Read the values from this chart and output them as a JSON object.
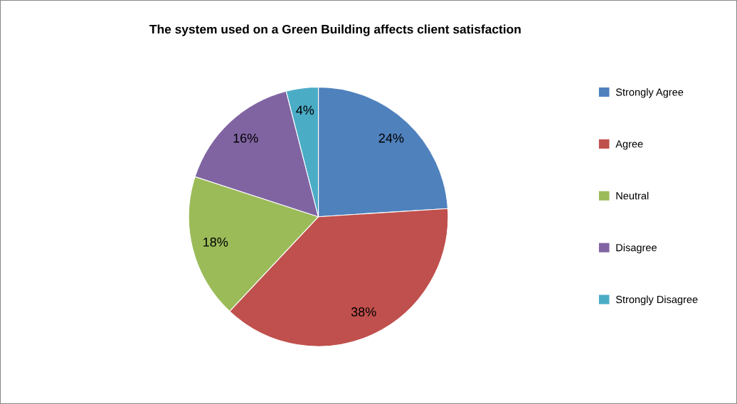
{
  "chart_data": {
    "type": "pie",
    "title": "The system used on a Green Building affects client satisfaction",
    "categories": [
      "Strongly Agree",
      "Agree",
      "Neutral",
      "Disagree",
      "Strongly Disagree"
    ],
    "values": [
      24,
      38,
      18,
      16,
      4
    ],
    "colors": [
      "#4f81bd",
      "#c0504d",
      "#9bbb59",
      "#8064a2",
      "#4bacc6"
    ],
    "value_labels": [
      "24%",
      "38%",
      "18%",
      "16%",
      "4%"
    ],
    "legend": "right"
  }
}
